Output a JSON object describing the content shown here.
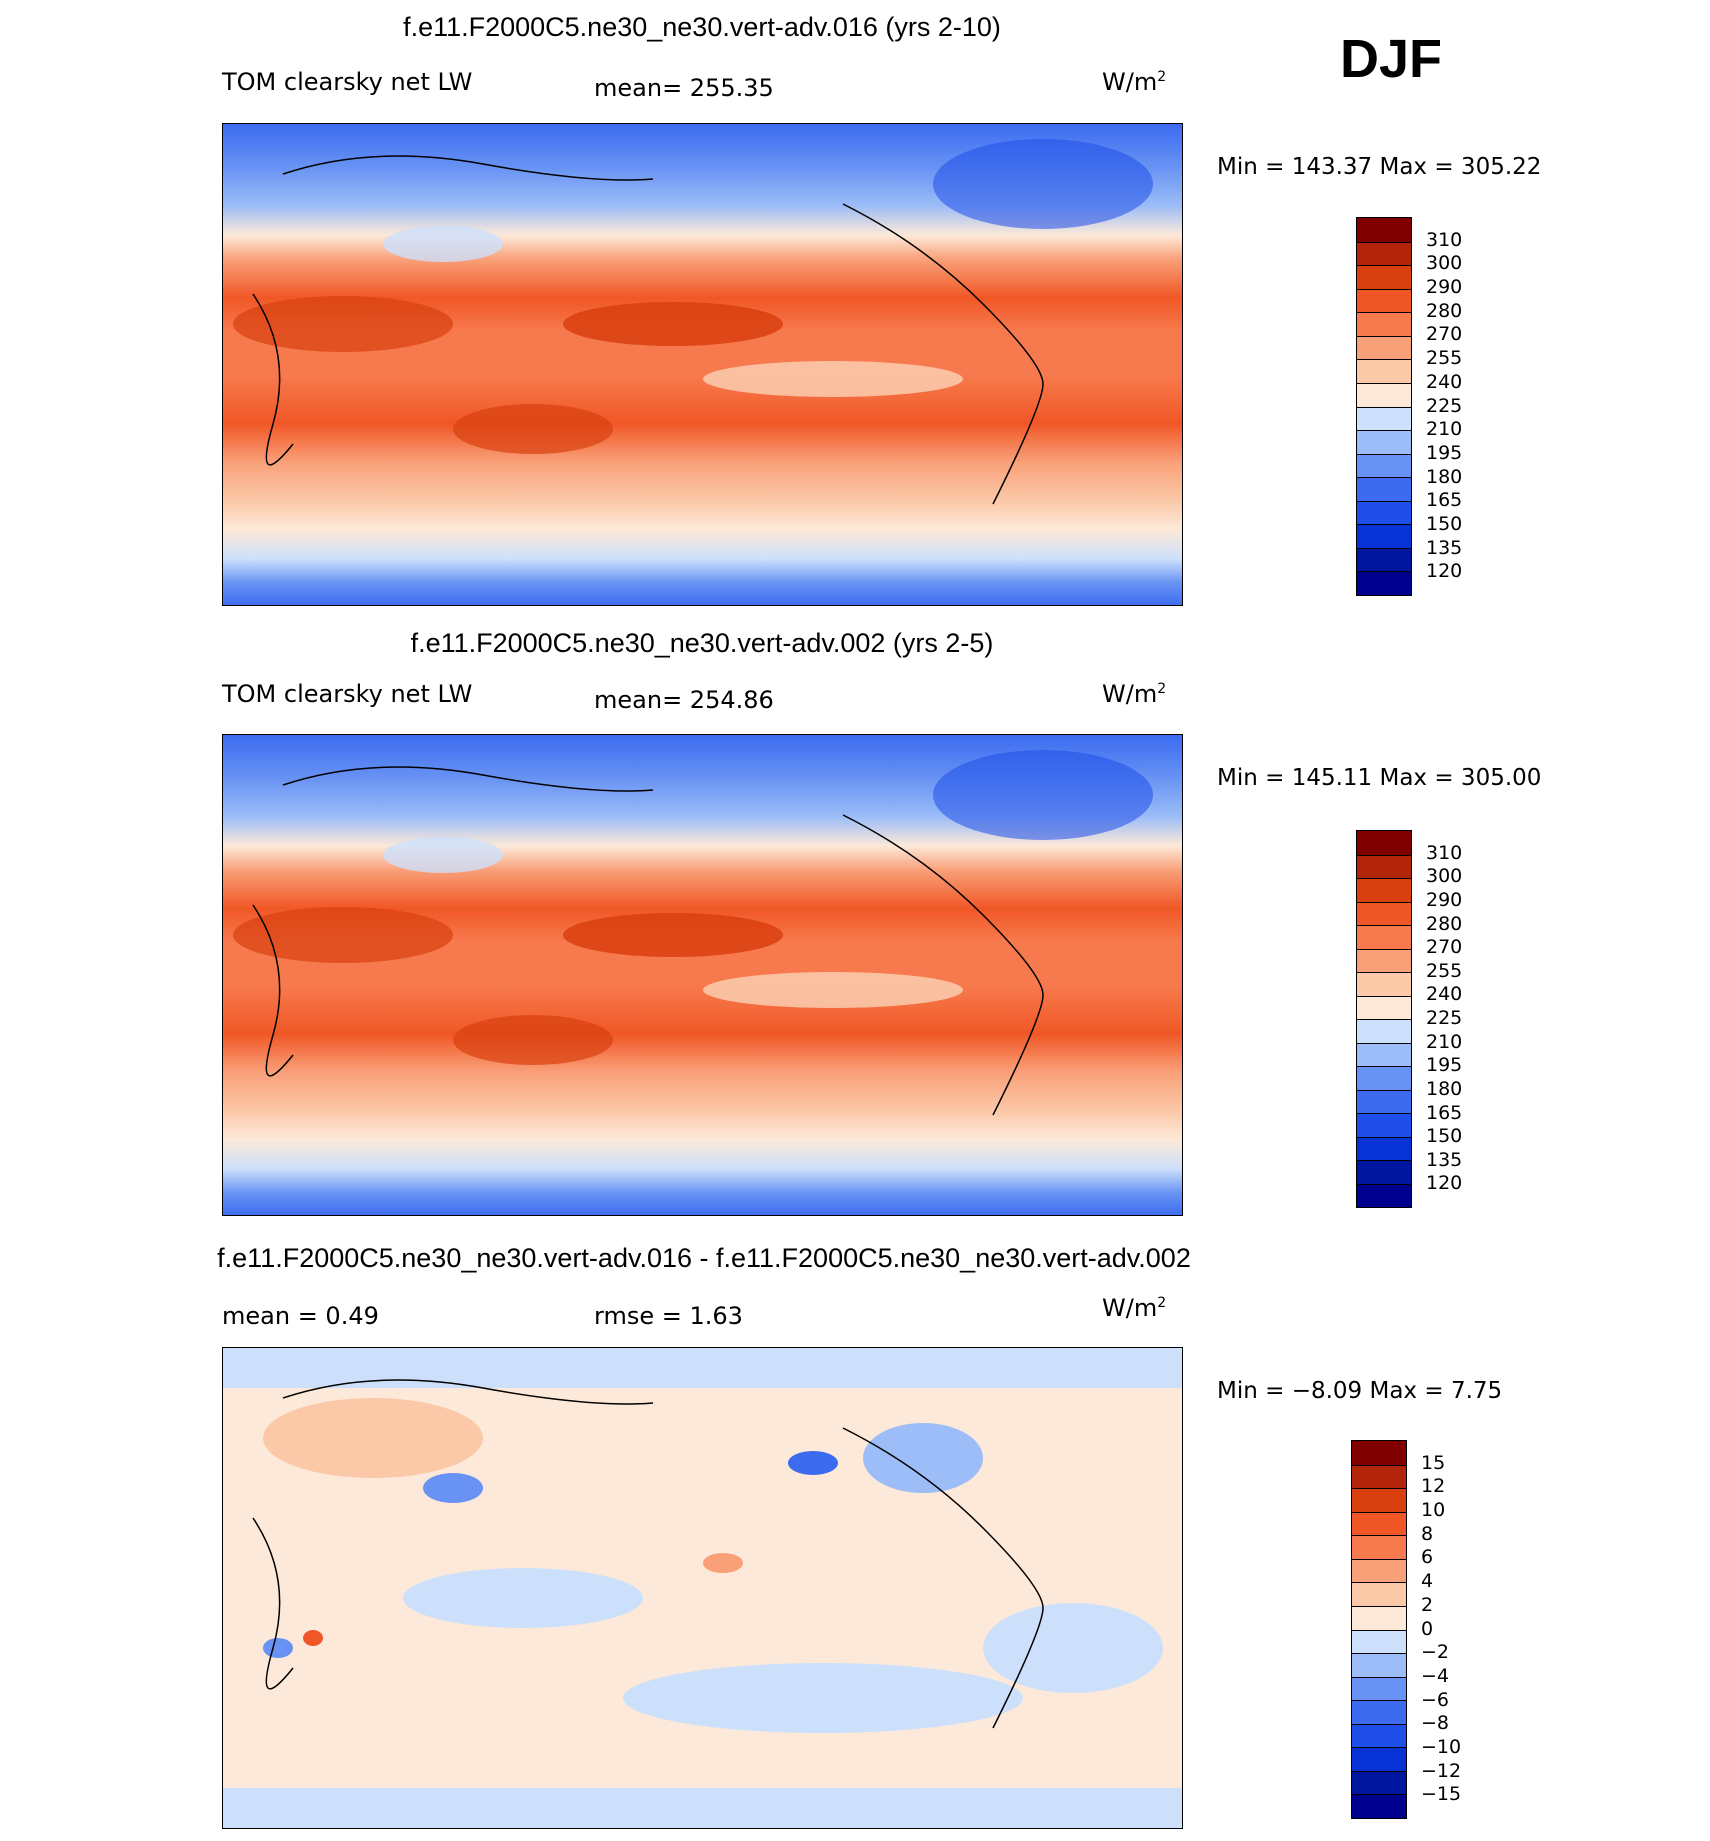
{
  "season": "DJF",
  "colors": {
    "abs_scale": [
      "#00008f",
      "#00169e",
      "#0632d6",
      "#1f4ee8",
      "#3c6bf0",
      "#6893f4",
      "#9cbdf7",
      "#cde0fb",
      "#fde9d9",
      "#fbc8a8",
      "#f9a079",
      "#f77a4e",
      "#f05726",
      "#d9400f",
      "#b3250a",
      "#800000"
    ],
    "diff_scale": [
      "#00008f",
      "#00169e",
      "#0632d6",
      "#1f4ee8",
      "#3c6bf0",
      "#6893f4",
      "#9cbdf7",
      "#cde0fb",
      "#fde9d9",
      "#fbc8a8",
      "#f9a079",
      "#f77a4e",
      "#f05726",
      "#d9400f",
      "#b3250a",
      "#800000"
    ]
  },
  "chart_data": [
    {
      "type": "heatmap",
      "title": "f.e11.F2000C5.ne30_ne30.vert-adv.016 (yrs 2-10)",
      "variable": "TOM clearsky net LW",
      "mean_label": "mean= 255.35",
      "units": "W/m",
      "units_exp": "2",
      "minmax_label": "Min =  143.37 Max =  305.22",
      "min": 143.37,
      "max": 305.22,
      "mean": 255.35,
      "colorbar_levels": [
        "310",
        "300",
        "290",
        "280",
        "270",
        "255",
        "240",
        "225",
        "210",
        "195",
        "180",
        "165",
        "150",
        "135",
        "120"
      ]
    },
    {
      "type": "heatmap",
      "title": "f.e11.F2000C5.ne30_ne30.vert-adv.002 (yrs 2-5)",
      "variable": "TOM clearsky net LW",
      "mean_label": "mean= 254.86",
      "units": "W/m",
      "units_exp": "2",
      "minmax_label": "Min =  145.11 Max =  305.00",
      "min": 145.11,
      "max": 305.0,
      "mean": 254.86,
      "colorbar_levels": [
        "310",
        "300",
        "290",
        "280",
        "270",
        "255",
        "240",
        "225",
        "210",
        "195",
        "180",
        "165",
        "150",
        "135",
        "120"
      ]
    },
    {
      "type": "heatmap",
      "title": "f.e11.F2000C5.ne30_ne30.vert-adv.016 - f.e11.F2000C5.ne30_ne30.vert-adv.002",
      "mean_label": "mean =    0.49",
      "rmse_label": "rmse =    1.63",
      "units": "W/m",
      "units_exp": "2",
      "minmax_label": "Min =  −8.09 Max =    7.75",
      "min": -8.09,
      "max": 7.75,
      "mean": 0.49,
      "rmse": 1.63,
      "colorbar_levels": [
        "15",
        "12",
        "10",
        "8",
        "6",
        "4",
        "2",
        "0",
        "−2",
        "−4",
        "−6",
        "−8",
        "−10",
        "−12",
        "−15"
      ]
    }
  ]
}
